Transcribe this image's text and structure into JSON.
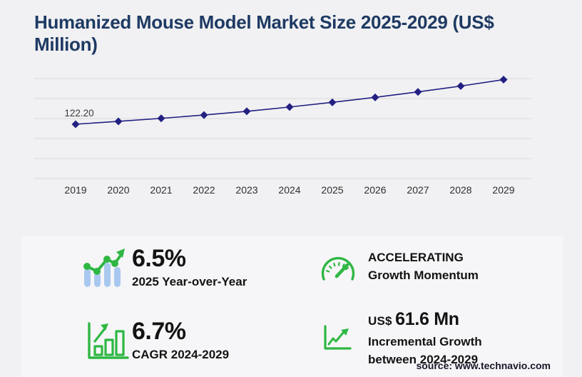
{
  "title_line1": "Humanized Mouse Model Market Size 2025-2029 (US$",
  "title_line2": "Million)",
  "source": "source: www.technavio.com",
  "colors": {
    "page_bg": "#f1f1f3",
    "panel_bg": "#f6f6f8",
    "title_navy": "#1e3a63",
    "line_navy": "#232082",
    "grid_gray": "#d9d9dc",
    "tick_text": "#2e2e2e",
    "stat_text": "#131313",
    "green": "#2fb743",
    "bar_blue": "#a9c8ef",
    "source_text": "#17172a"
  },
  "chart_data": {
    "type": "line",
    "title": "Humanized Mouse Model Market Size 2025-2029 (US$ Million)",
    "x": [
      "2019",
      "2020",
      "2021",
      "2022",
      "2023",
      "2024",
      "2025",
      "2026",
      "2027",
      "2028",
      "2029"
    ],
    "series": [
      {
        "name": "Market size (US$ million)",
        "values": [
          122.2,
          128.6,
          135.4,
          142.9,
          151.2,
          160.9,
          171.4,
          182.7,
          194.9,
          208.1,
          222.5
        ]
      }
    ],
    "point_label": {
      "x": "2019",
      "text": "122.20"
    },
    "ylim": [
      0,
      225
    ],
    "xlabel": "",
    "ylabel": "",
    "grid": "horizontal",
    "gridline_count": 6,
    "legend": "none",
    "marker": "diamond"
  },
  "stats": [
    {
      "icon": "bar-chart-trend-icon",
      "value": "6.5%",
      "label": "2025 Year-over-Year"
    },
    {
      "icon": "speedometer-icon",
      "line1": "ACCELERATING",
      "line2": "Growth Momentum"
    },
    {
      "icon": "bar-chart-growth-icon",
      "value": "6.7%",
      "label": "CAGR 2024-2029"
    },
    {
      "icon": "line-chart-growth-icon",
      "currency": "US$",
      "value": "61.6 Mn",
      "label1": "Incremental Growth",
      "label2": "between 2024-2029"
    }
  ]
}
